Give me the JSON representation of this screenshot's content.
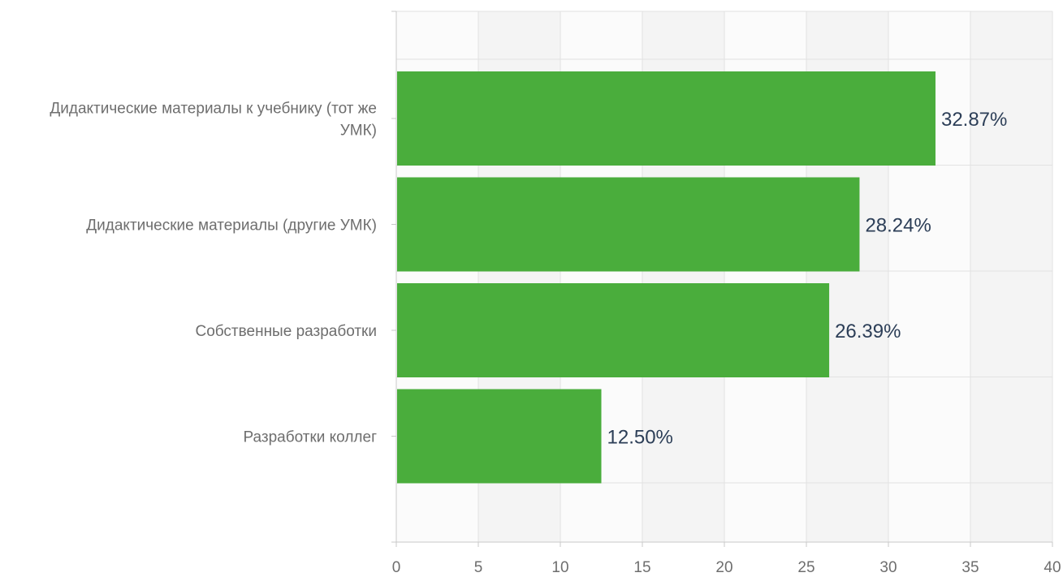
{
  "chart_data": {
    "type": "bar",
    "orientation": "horizontal",
    "categories": [
      [
        "Дидактические материалы к учебнику (тот же",
        "УМК)"
      ],
      [
        "Дидактические материалы (другие УМК)"
      ],
      [
        "Собственные разработки"
      ],
      [
        "Разработки коллег"
      ]
    ],
    "values": [
      32.87,
      28.24,
      26.39,
      12.5
    ],
    "data_labels": [
      "32.87%",
      "28.24%",
      "26.39%",
      "12.50%"
    ],
    "xlim": [
      0,
      40
    ],
    "xticks": [
      0,
      5,
      10,
      15,
      20,
      25,
      30,
      35,
      40
    ],
    "grid": true,
    "legend": "none",
    "title": "",
    "xlabel": "",
    "ylabel": ""
  },
  "colors": {
    "bar": "#4aad3c",
    "plot_band_light": "#fbfbfb",
    "plot_band_dark": "#f4f4f4",
    "grid": "#e2e2e2",
    "axis": "#c8c8c8"
  }
}
